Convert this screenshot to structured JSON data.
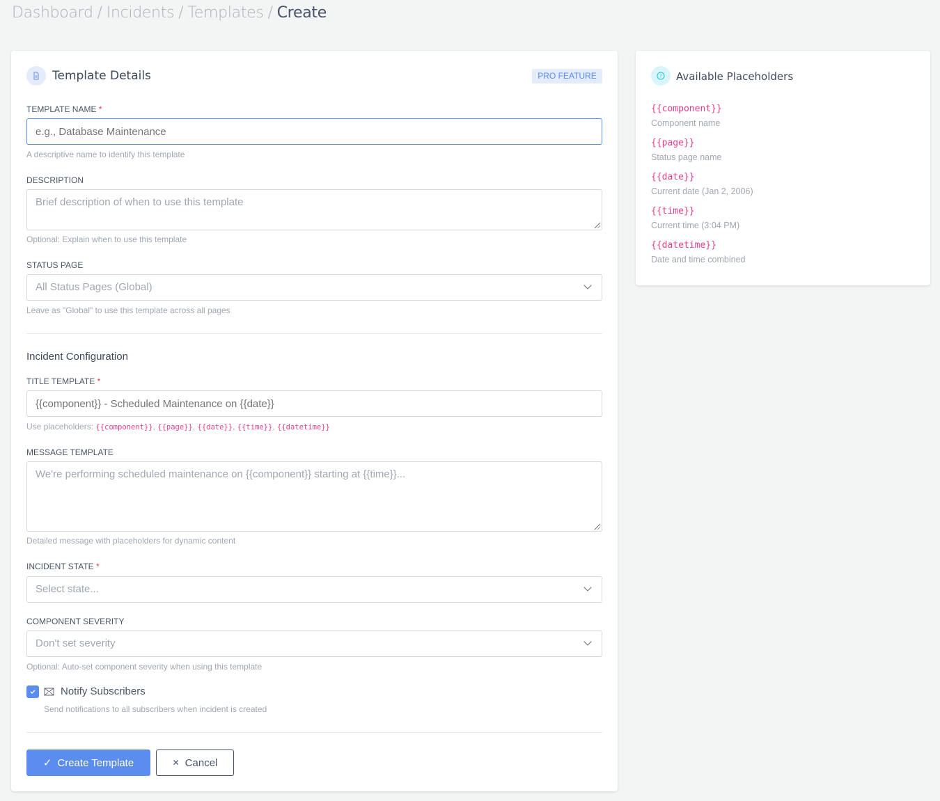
{
  "breadcrumb": [
    "Dashboard",
    "Incidents",
    "Templates",
    "Create"
  ],
  "main": {
    "title": "Template Details",
    "icon": "document-icon",
    "badge": "PRO FEATURE",
    "template_name": {
      "label": "TEMPLATE NAME",
      "placeholder": "e.g., Database Maintenance",
      "value": "",
      "help": "A descriptive name to identify this template"
    },
    "description": {
      "label": "DESCRIPTION",
      "placeholder": "Brief description of when to use this template",
      "value": "",
      "help": "Optional: Explain when to use this template"
    },
    "status_page": {
      "label": "STATUS PAGE",
      "selected": "All Status Pages (Global)",
      "help": "Leave as \"Global\" to use this template across all pages"
    },
    "section_title": "Incident Configuration",
    "title_template": {
      "label": "TITLE TEMPLATE",
      "placeholder": "{{component}} - Scheduled Maintenance on {{date}}",
      "value": "",
      "help_prefix": "Use placeholders: ",
      "help_codes": [
        "{{component}}",
        "{{page}}",
        "{{date}}",
        "{{time}}",
        "{{datetime}}"
      ]
    },
    "message_template": {
      "label": "MESSAGE TEMPLATE",
      "placeholder": "We're performing scheduled maintenance on {{component}} starting at {{time}}...",
      "value": "",
      "help": "Detailed message with placeholders for dynamic content"
    },
    "incident_state": {
      "label": "INCIDENT STATE",
      "selected": "Select state..."
    },
    "component_severity": {
      "label": "COMPONENT SEVERITY",
      "selected": "Don't set severity",
      "help": "Optional: Auto-set component severity when using this template"
    },
    "notify": {
      "label": "Notify Subscribers",
      "checked": true,
      "help": "Send notifications to all subscribers when incident is created"
    },
    "create_label": "Create Template",
    "cancel_label": "Cancel"
  },
  "side": {
    "title": "Available Placeholders",
    "icon": "question-circle-icon",
    "items": [
      {
        "code": "{{component}}",
        "desc": "Component name"
      },
      {
        "code": "{{page}}",
        "desc": "Status page name"
      },
      {
        "code": "{{date}}",
        "desc": "Current date (Jan 2, 2006)"
      },
      {
        "code": "{{time}}",
        "desc": "Current time (3:04 PM)"
      },
      {
        "code": "{{datetime}}",
        "desc": "Date and time combined"
      }
    ]
  },
  "colors": {
    "accent": "#5b8def",
    "code": "#e83e8c",
    "required": "#e53e3e"
  }
}
